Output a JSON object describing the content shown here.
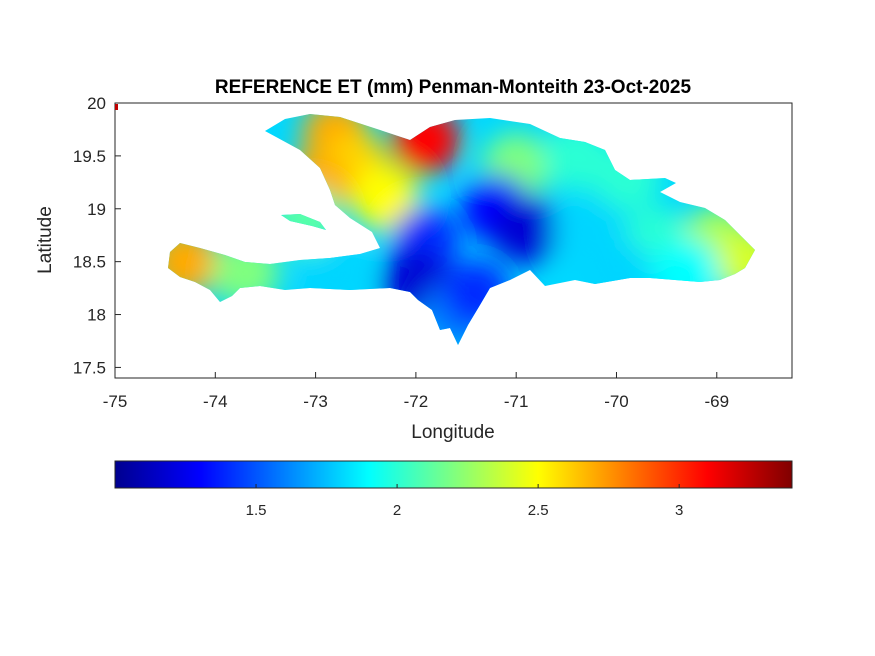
{
  "title": "REFERENCE ET (mm) Penman-Monteith 23-Oct-2025",
  "xlabel": "Longitude",
  "ylabel": "Latitude",
  "xlim": [
    -75,
    -68.25
  ],
  "ylim": [
    17.4,
    20
  ],
  "xticks": [
    -75,
    -74,
    -73,
    -72,
    -71,
    -70,
    -69
  ],
  "xtick_labels": [
    "-75",
    "-74",
    "-73",
    "-72",
    "-71",
    "-70",
    "-69"
  ],
  "yticks": [
    17.5,
    18,
    18.5,
    19,
    19.5,
    20
  ],
  "ytick_labels": [
    "17.5",
    "18",
    "18.5",
    "19",
    "19.5",
    "20"
  ],
  "colorbar": {
    "colormap": "jet",
    "range": [
      1.0,
      3.4
    ],
    "ticks": [
      1.5,
      2,
      2.5,
      3
    ],
    "tick_labels": [
      "1.5",
      "2",
      "2.5",
      "3"
    ],
    "orientation": "horizontal",
    "location": "below"
  },
  "chart_data": {
    "type": "heatmap",
    "title": "REFERENCE ET (mm) Penman-Monteith 23-Oct-2025",
    "xlabel": "Longitude",
    "ylabel": "Latitude",
    "xlim": [
      -75,
      -68.25
    ],
    "ylim": [
      17.4,
      20
    ],
    "value_range": [
      1.0,
      3.4
    ],
    "grid": false,
    "region_values": [
      {
        "lon": -72.8,
        "lat": 19.7,
        "value": 2.7
      },
      {
        "lon": -71.9,
        "lat": 19.65,
        "value": 3.1
      },
      {
        "lon": -72.6,
        "lat": 19.4,
        "value": 2.6
      },
      {
        "lon": -73.0,
        "lat": 19.2,
        "value": 2.7
      },
      {
        "lon": -72.3,
        "lat": 19.1,
        "value": 2.5
      },
      {
        "lon": -71.0,
        "lat": 19.4,
        "value": 2.2
      },
      {
        "lon": -70.4,
        "lat": 19.5,
        "value": 2.0
      },
      {
        "lon": -69.9,
        "lat": 19.3,
        "value": 2.0
      },
      {
        "lon": -71.2,
        "lat": 19.0,
        "value": 1.3
      },
      {
        "lon": -70.9,
        "lat": 18.8,
        "value": 1.2
      },
      {
        "lon": -71.9,
        "lat": 18.7,
        "value": 1.4
      },
      {
        "lon": -70.3,
        "lat": 18.8,
        "value": 1.8
      },
      {
        "lon": -69.6,
        "lat": 18.7,
        "value": 2.0
      },
      {
        "lon": -69.0,
        "lat": 18.7,
        "value": 2.3
      },
      {
        "lon": -68.7,
        "lat": 18.5,
        "value": 2.4
      },
      {
        "lon": -69.3,
        "lat": 18.4,
        "value": 1.9
      },
      {
        "lon": -70.0,
        "lat": 18.4,
        "value": 1.8
      },
      {
        "lon": -74.3,
        "lat": 18.5,
        "value": 2.7
      },
      {
        "lon": -73.7,
        "lat": 18.4,
        "value": 2.2
      },
      {
        "lon": -72.8,
        "lat": 18.4,
        "value": 1.8
      },
      {
        "lon": -72.0,
        "lat": 18.3,
        "value": 1.2
      },
      {
        "lon": -71.6,
        "lat": 18.0,
        "value": 1.6
      },
      {
        "lon": -71.4,
        "lat": 18.2,
        "value": 1.4
      },
      {
        "lon": -73.1,
        "lat": 18.9,
        "value": 2.1
      }
    ]
  }
}
